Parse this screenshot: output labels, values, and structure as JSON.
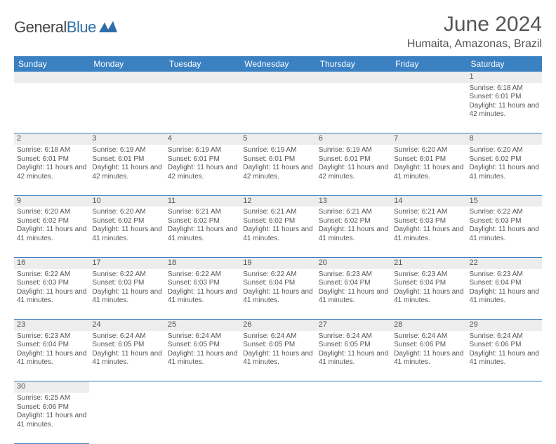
{
  "logo": {
    "word1": "General",
    "word2": "Blue"
  },
  "title": "June 2024",
  "location": "Humaita, Amazonas, Brazil",
  "colors": {
    "header_bg": "#3b81c2",
    "header_text": "#ffffff",
    "daynum_bg": "#ededed",
    "border": "#3b81c2",
    "text": "#555555",
    "logo_blue": "#2f6fa8"
  },
  "weekdays": [
    "Sunday",
    "Monday",
    "Tuesday",
    "Wednesday",
    "Thursday",
    "Friday",
    "Saturday"
  ],
  "weeks": [
    [
      null,
      null,
      null,
      null,
      null,
      null,
      {
        "n": "1",
        "sr": "6:18 AM",
        "ss": "6:01 PM",
        "dl": "11 hours and 42 minutes."
      }
    ],
    [
      {
        "n": "2",
        "sr": "6:18 AM",
        "ss": "6:01 PM",
        "dl": "11 hours and 42 minutes."
      },
      {
        "n": "3",
        "sr": "6:19 AM",
        "ss": "6:01 PM",
        "dl": "11 hours and 42 minutes."
      },
      {
        "n": "4",
        "sr": "6:19 AM",
        "ss": "6:01 PM",
        "dl": "11 hours and 42 minutes."
      },
      {
        "n": "5",
        "sr": "6:19 AM",
        "ss": "6:01 PM",
        "dl": "11 hours and 42 minutes."
      },
      {
        "n": "6",
        "sr": "6:19 AM",
        "ss": "6:01 PM",
        "dl": "11 hours and 42 minutes."
      },
      {
        "n": "7",
        "sr": "6:20 AM",
        "ss": "6:01 PM",
        "dl": "11 hours and 41 minutes."
      },
      {
        "n": "8",
        "sr": "6:20 AM",
        "ss": "6:02 PM",
        "dl": "11 hours and 41 minutes."
      }
    ],
    [
      {
        "n": "9",
        "sr": "6:20 AM",
        "ss": "6:02 PM",
        "dl": "11 hours and 41 minutes."
      },
      {
        "n": "10",
        "sr": "6:20 AM",
        "ss": "6:02 PM",
        "dl": "11 hours and 41 minutes."
      },
      {
        "n": "11",
        "sr": "6:21 AM",
        "ss": "6:02 PM",
        "dl": "11 hours and 41 minutes."
      },
      {
        "n": "12",
        "sr": "6:21 AM",
        "ss": "6:02 PM",
        "dl": "11 hours and 41 minutes."
      },
      {
        "n": "13",
        "sr": "6:21 AM",
        "ss": "6:02 PM",
        "dl": "11 hours and 41 minutes."
      },
      {
        "n": "14",
        "sr": "6:21 AM",
        "ss": "6:03 PM",
        "dl": "11 hours and 41 minutes."
      },
      {
        "n": "15",
        "sr": "6:22 AM",
        "ss": "6:03 PM",
        "dl": "11 hours and 41 minutes."
      }
    ],
    [
      {
        "n": "16",
        "sr": "6:22 AM",
        "ss": "6:03 PM",
        "dl": "11 hours and 41 minutes."
      },
      {
        "n": "17",
        "sr": "6:22 AM",
        "ss": "6:03 PM",
        "dl": "11 hours and 41 minutes."
      },
      {
        "n": "18",
        "sr": "6:22 AM",
        "ss": "6:03 PM",
        "dl": "11 hours and 41 minutes."
      },
      {
        "n": "19",
        "sr": "6:22 AM",
        "ss": "6:04 PM",
        "dl": "11 hours and 41 minutes."
      },
      {
        "n": "20",
        "sr": "6:23 AM",
        "ss": "6:04 PM",
        "dl": "11 hours and 41 minutes."
      },
      {
        "n": "21",
        "sr": "6:23 AM",
        "ss": "6:04 PM",
        "dl": "11 hours and 41 minutes."
      },
      {
        "n": "22",
        "sr": "6:23 AM",
        "ss": "6:04 PM",
        "dl": "11 hours and 41 minutes."
      }
    ],
    [
      {
        "n": "23",
        "sr": "6:23 AM",
        "ss": "6:04 PM",
        "dl": "11 hours and 41 minutes."
      },
      {
        "n": "24",
        "sr": "6:24 AM",
        "ss": "6:05 PM",
        "dl": "11 hours and 41 minutes."
      },
      {
        "n": "25",
        "sr": "6:24 AM",
        "ss": "6:05 PM",
        "dl": "11 hours and 41 minutes."
      },
      {
        "n": "26",
        "sr": "6:24 AM",
        "ss": "6:05 PM",
        "dl": "11 hours and 41 minutes."
      },
      {
        "n": "27",
        "sr": "6:24 AM",
        "ss": "6:05 PM",
        "dl": "11 hours and 41 minutes."
      },
      {
        "n": "28",
        "sr": "6:24 AM",
        "ss": "6:06 PM",
        "dl": "11 hours and 41 minutes."
      },
      {
        "n": "29",
        "sr": "6:24 AM",
        "ss": "6:06 PM",
        "dl": "11 hours and 41 minutes."
      }
    ],
    [
      {
        "n": "30",
        "sr": "6:25 AM",
        "ss": "6:06 PM",
        "dl": "11 hours and 41 minutes."
      },
      null,
      null,
      null,
      null,
      null,
      null
    ]
  ],
  "labels": {
    "sunrise": "Sunrise:",
    "sunset": "Sunset:",
    "daylight": "Daylight:"
  }
}
